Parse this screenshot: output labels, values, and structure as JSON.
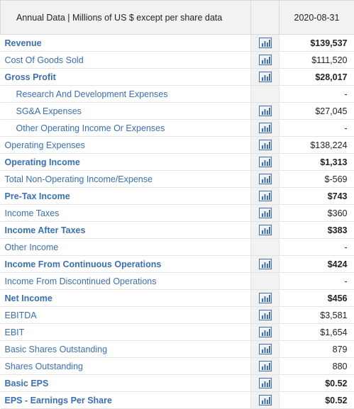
{
  "header": {
    "label": "Annual Data | Millions of US $ except per share data",
    "period": "2020-08-31"
  },
  "chart_icon": "bar-chart-icon",
  "accent_color": "#3a6fb0",
  "rows": [
    {
      "label": "Revenue",
      "value": "$139,537",
      "bold": true,
      "indent": false,
      "chart": true
    },
    {
      "label": "Cost Of Goods Sold",
      "value": "$111,520",
      "bold": false,
      "indent": false,
      "chart": true
    },
    {
      "label": "Gross Profit",
      "value": "$28,017",
      "bold": true,
      "indent": false,
      "chart": true
    },
    {
      "label": "Research And Development Expenses",
      "value": "-",
      "bold": false,
      "indent": true,
      "chart": false
    },
    {
      "label": "SG&A Expenses",
      "value": "$27,045",
      "bold": false,
      "indent": true,
      "chart": true
    },
    {
      "label": "Other Operating Income Or Expenses",
      "value": "-",
      "bold": false,
      "indent": true,
      "chart": true
    },
    {
      "label": "Operating Expenses",
      "value": "$138,224",
      "bold": false,
      "indent": false,
      "chart": true
    },
    {
      "label": "Operating Income",
      "value": "$1,313",
      "bold": true,
      "indent": false,
      "chart": true
    },
    {
      "label": "Total Non-Operating Income/Expense",
      "value": "$-569",
      "bold": false,
      "indent": false,
      "chart": true
    },
    {
      "label": "Pre-Tax Income",
      "value": "$743",
      "bold": true,
      "indent": false,
      "chart": true
    },
    {
      "label": "Income Taxes",
      "value": "$360",
      "bold": false,
      "indent": false,
      "chart": true
    },
    {
      "label": "Income After Taxes",
      "value": "$383",
      "bold": true,
      "indent": false,
      "chart": true
    },
    {
      "label": "Other Income",
      "value": "-",
      "bold": false,
      "indent": false,
      "chart": false
    },
    {
      "label": "Income From Continuous Operations",
      "value": "$424",
      "bold": true,
      "indent": false,
      "chart": true
    },
    {
      "label": "Income From Discontinued Operations",
      "value": "-",
      "bold": false,
      "indent": false,
      "chart": false
    },
    {
      "label": "Net Income",
      "value": "$456",
      "bold": true,
      "indent": false,
      "chart": true
    },
    {
      "label": "EBITDA",
      "value": "$3,581",
      "bold": false,
      "indent": false,
      "chart": true
    },
    {
      "label": "EBIT",
      "value": "$1,654",
      "bold": false,
      "indent": false,
      "chart": true
    },
    {
      "label": "Basic Shares Outstanding",
      "value": "879",
      "bold": false,
      "indent": false,
      "chart": true
    },
    {
      "label": "Shares Outstanding",
      "value": "880",
      "bold": false,
      "indent": false,
      "chart": true
    },
    {
      "label": "Basic EPS",
      "value": "$0.52",
      "bold": true,
      "indent": false,
      "chart": true
    },
    {
      "label": "EPS - Earnings Per Share",
      "value": "$0.52",
      "bold": true,
      "indent": false,
      "chart": true
    }
  ]
}
